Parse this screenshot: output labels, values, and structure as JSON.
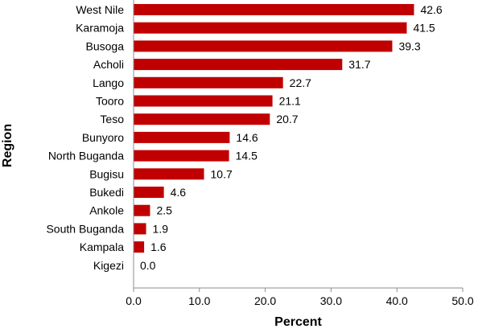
{
  "chart_data": {
    "type": "bar",
    "orientation": "horizontal",
    "title": "",
    "xlabel": "Percent",
    "ylabel": "Region",
    "xlim": [
      0,
      50
    ],
    "xticks": [
      0,
      10,
      20,
      30,
      40,
      50
    ],
    "xtick_labels": [
      "0.0",
      "10.0",
      "20.0",
      "30.0",
      "40.0",
      "50.0"
    ],
    "grid": false,
    "legend": "none",
    "bar_color": "#c00000",
    "categories": [
      "West Nile",
      "Karamoja",
      "Busoga",
      "Acholi",
      "Lango",
      "Tooro",
      "Teso",
      "Bunyoro",
      "North Buganda",
      "Bugisu",
      "Bukedi",
      "Ankole",
      "South Buganda",
      "Kampala",
      "Kigezi"
    ],
    "values": [
      42.6,
      41.5,
      39.3,
      31.7,
      22.7,
      21.1,
      20.7,
      14.6,
      14.5,
      10.7,
      4.6,
      2.5,
      1.9,
      1.6,
      0.0
    ],
    "value_labels": [
      "42.6",
      "41.5",
      "39.3",
      "31.7",
      "22.7",
      "21.1",
      "20.7",
      "14.6",
      "14.5",
      "10.7",
      "4.6",
      "2.5",
      "1.9",
      "1.6",
      "0.0"
    ]
  }
}
